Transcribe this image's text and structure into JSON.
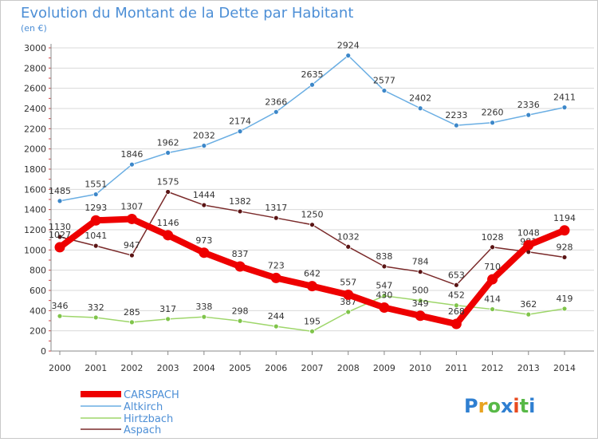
{
  "title": "Evolution du Montant de la Dette par Habitant",
  "subtitle": "(en €)",
  "logo_text": "Proxiti",
  "colors": {
    "title": "#4d8fd6",
    "axis_text": "#333333",
    "grid": "#d9d9d9",
    "logo": [
      "#2f7fd1",
      "#e8a320",
      "#58b947",
      "#2f7fd1",
      "#e84a1f",
      "#58b947",
      "#2f7fd1"
    ]
  },
  "chart_data": {
    "type": "line",
    "title": "Evolution du Montant de la Dette par Habitant",
    "ylabel": "(en €)",
    "xlabel": "",
    "x": [
      "2000",
      "2001",
      "2002",
      "2003",
      "2004",
      "2005",
      "2006",
      "2007",
      "2008",
      "2009",
      "2010",
      "2011",
      "2012",
      "2013",
      "2014"
    ],
    "ylim": [
      0,
      3000
    ],
    "yticks": [
      0,
      200,
      400,
      600,
      800,
      1000,
      1200,
      1400,
      1600,
      1800,
      2000,
      2200,
      2400,
      2600,
      2800,
      3000
    ],
    "grid": "horizontal",
    "legend": "bottom-left",
    "series": [
      {
        "name": "Aspach",
        "color": "#7a2a2a",
        "marker_color": "#5a1414",
        "values": [
          1130,
          1041,
          947,
          1575,
          1444,
          1382,
          1317,
          1250,
          1032,
          838,
          784,
          653,
          1028,
          981,
          928
        ],
        "labels": [
          "1130",
          "1041",
          "947",
          "1575",
          "1444",
          "1382",
          "1317",
          "1250",
          "1032",
          "838",
          "784",
          "653",
          "1028",
          "981",
          "928"
        ]
      },
      {
        "name": "Hirtzbach",
        "color": "#9ed66a",
        "marker_color": "#7fc44a",
        "values": [
          346,
          332,
          285,
          317,
          338,
          298,
          244,
          195,
          387,
          547,
          500,
          452,
          414,
          362,
          419
        ],
        "labels": [
          "346",
          "332",
          "285",
          "317",
          "338",
          "298",
          "244",
          "195",
          "387",
          "547",
          "500",
          "452",
          "414",
          "362",
          "419"
        ]
      },
      {
        "name": "Altkirch",
        "color": "#6aaee3",
        "marker_color": "#3c87c9",
        "values": [
          1485,
          1551,
          1846,
          1962,
          2032,
          2174,
          2366,
          2635,
          2924,
          2577,
          2402,
          2233,
          2260,
          2336,
          2411
        ],
        "labels": [
          "1485",
          "1551",
          "1846",
          "1962",
          "2032",
          "2174",
          "2366",
          "2635",
          "2924",
          "2577",
          "2402",
          "2233",
          "2260",
          "2336",
          "2411"
        ]
      },
      {
        "name": "CARSPACH",
        "color": "#ee0000",
        "marker_color": "#ee0000",
        "values": [
          1027,
          1293,
          1307,
          1146,
          973,
          837,
          723,
          642,
          557,
          430,
          349,
          268,
          710,
          1048,
          1194
        ],
        "labels": [
          "1027",
          "1293",
          "1307",
          "1146",
          "973",
          "837",
          "723",
          "642",
          "557",
          "430",
          "349",
          "268",
          "710",
          "1048",
          "1194"
        ]
      }
    ],
    "legend_order": [
      "CARSPACH",
      "Altkirch",
      "Hirtzbach",
      "Aspach"
    ]
  }
}
